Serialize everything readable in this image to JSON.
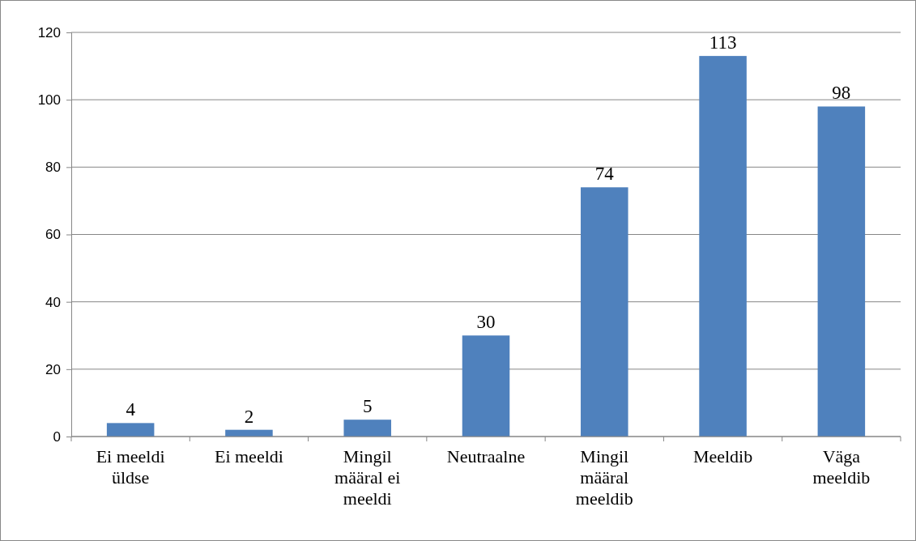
{
  "chart_data": {
    "type": "bar",
    "categories": [
      "Ei meeldi üldse",
      "Ei meeldi",
      "Mingil määral ei meeldi",
      "Neutraalne",
      "Mingil määral meeldib",
      "Meeldib",
      "Väga meeldib"
    ],
    "values": [
      4,
      2,
      5,
      30,
      74,
      113,
      98
    ],
    "color": "#4f81bd",
    "ylim": [
      0,
      120
    ],
    "yticks": [
      0,
      20,
      40,
      60,
      80,
      100,
      120
    ],
    "grid": "y",
    "data_labels": true
  }
}
